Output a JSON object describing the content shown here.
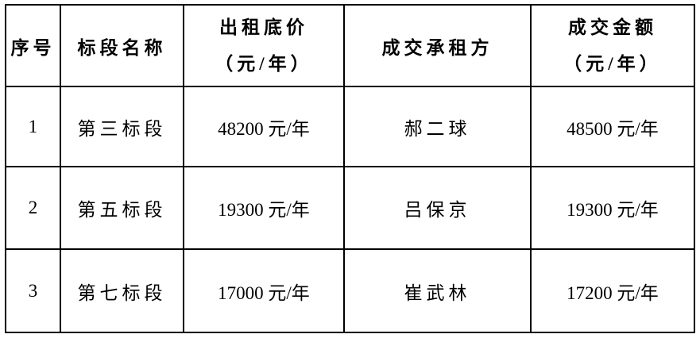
{
  "page": {
    "background": "#ffffff"
  },
  "table": {
    "border_color": "#000000",
    "text_color": "#000000",
    "columns": [
      {
        "id": "seq",
        "lines": [
          "序号"
        ]
      },
      {
        "id": "section_name",
        "lines": [
          "标段名称"
        ]
      },
      {
        "id": "base_price",
        "lines": [
          "出租底价",
          "（元/年）"
        ]
      },
      {
        "id": "lessee",
        "lines": [
          "成交承租方"
        ]
      },
      {
        "id": "deal_amount",
        "lines": [
          "成交金额",
          "（元/年）"
        ]
      }
    ],
    "rows": [
      {
        "seq": "1",
        "section_name": "第三标段",
        "base_price": "48200 元/年",
        "lessee": "郝二球",
        "deal_amount": "48500 元/年"
      },
      {
        "seq": "2",
        "section_name": "第五标段",
        "base_price": "19300 元/年",
        "lessee": "吕保京",
        "deal_amount": "19300 元/年"
      },
      {
        "seq": "3",
        "section_name": "第七标段",
        "base_price": "17000 元/年",
        "lessee": "崔武林",
        "deal_amount": "17200 元/年"
      }
    ]
  }
}
